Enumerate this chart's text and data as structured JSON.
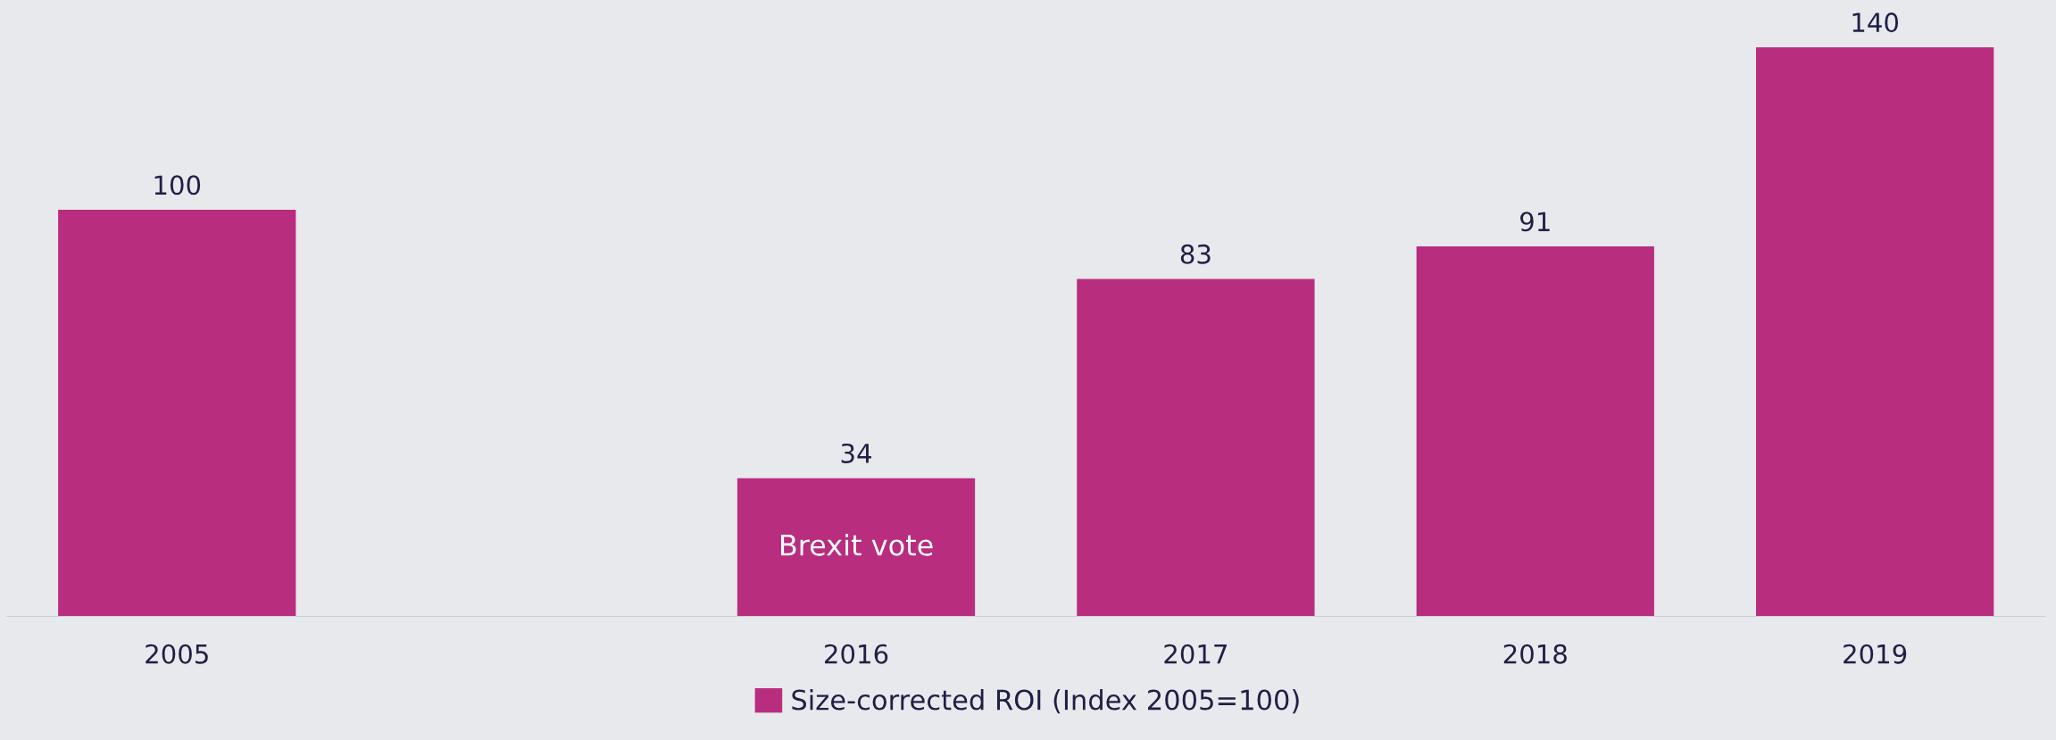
{
  "chart_data": {
    "type": "bar",
    "categories": [
      "2005",
      null,
      "2016",
      "2017",
      "2018",
      "2019"
    ],
    "series": [
      {
        "name": "Size-corrected ROI (Index 2005=100)",
        "color": "#b82d7e",
        "values": [
          100,
          null,
          34,
          83,
          91,
          140
        ]
      }
    ],
    "data_labels": true,
    "annotations": [
      "Brexit vote"
    ],
    "legend": "bottom",
    "grid": false
  }
}
